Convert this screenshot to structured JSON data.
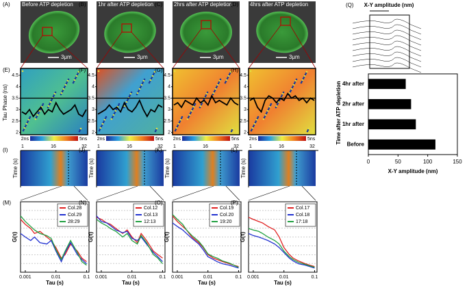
{
  "images": [
    {
      "label": "(A)",
      "caption": "Before ATP depletion",
      "scale": "3μm"
    },
    {
      "label": "(B)",
      "caption": "1hr after ATP depletion",
      "scale": "3μm"
    },
    {
      "label": "(C)",
      "caption": "2hrs after ATP depletion",
      "scale": "3μm"
    },
    {
      "label": "(D)",
      "caption": "4hrs after ATP depletion",
      "scale": "3μm"
    }
  ],
  "kymographs": [
    {
      "label": "(I)",
      "ticks": [
        "1",
        "16",
        "32"
      ],
      "ylabel": "Time (s)"
    },
    {
      "label": "(J)",
      "ticks": [
        "1",
        "16",
        "32"
      ],
      "ylabel": "Time (s)"
    },
    {
      "label": "(K)",
      "ticks": [
        "1",
        "16",
        "32"
      ],
      "ylabel": "Time (s)"
    },
    {
      "label": "(L)",
      "ticks": [
        "1",
        "16",
        "32"
      ],
      "ylabel": "Time (s)"
    }
  ],
  "chart_data": [
    {
      "type": "hbar",
      "panel_label": "(Q)",
      "schematic_label": "X-Y amplitude (nm)",
      "categories": [
        "4hr after",
        "2hr after",
        "1hr after",
        "Before"
      ],
      "values": [
        63,
        72,
        80,
        113
      ],
      "color": "#000000",
      "xlim": [
        0,
        150
      ],
      "xticks": [
        0,
        50,
        100,
        150
      ],
      "xlabel": "X-Y amplitude (nm)",
      "ylabel": "Time after ATP depletion"
    },
    {
      "type": "trace",
      "panel_label": "(E)",
      "ylabel": "Tau Phase (ns)",
      "ylim": [
        1.9,
        4.8
      ],
      "yticks": [
        2,
        2.5,
        3,
        3.5,
        4,
        4.5
      ],
      "reference": 3.5,
      "colorbar": [
        "2ns",
        "5ns"
      ],
      "values": [
        2.9,
        2.8,
        3.0,
        2.7,
        2.9,
        3.1,
        2.8,
        3.0,
        2.9,
        3.3,
        3.0,
        2.8,
        2.9,
        3.0,
        3.2,
        2.8,
        2.7,
        3.0
      ]
    },
    {
      "type": "trace",
      "panel_label": "(F)",
      "ylim": [
        1.9,
        4.8
      ],
      "yticks": [
        2,
        2.5,
        3,
        3.5,
        4,
        4.5
      ],
      "reference": 3.5,
      "colorbar": [
        "2ns",
        "5ns"
      ],
      "values": [
        2.8,
        2.9,
        3.0,
        3.2,
        3.0,
        3.1,
        2.9,
        3.3,
        3.0,
        2.9,
        3.1,
        3.4,
        3.0,
        2.7,
        3.0,
        2.9,
        3.2,
        3.1
      ]
    },
    {
      "type": "trace",
      "panel_label": "(G)",
      "ylim": [
        1.9,
        4.8
      ],
      "yticks": [
        2,
        2.5,
        3,
        3.5,
        4,
        4.5
      ],
      "reference": 3.5,
      "colorbar": [
        "2ns",
        "5ns"
      ],
      "values": [
        3.2,
        3.3,
        3.1,
        3.4,
        3.3,
        3.2,
        3.5,
        3.3,
        3.4,
        3.2,
        3.6,
        3.3,
        3.4,
        3.3,
        3.2,
        3.5,
        3.3,
        3.2
      ]
    },
    {
      "type": "trace",
      "panel_label": "(H)",
      "ylim": [
        1.9,
        4.8
      ],
      "yticks": [
        2,
        2.5,
        3,
        3.5,
        4,
        4.5
      ],
      "reference": 3.5,
      "colorbar": [
        "2ns",
        "5ns"
      ],
      "values": [
        3.4,
        3.5,
        3.1,
        2.9,
        3.4,
        3.6,
        3.5,
        3.3,
        3.5,
        3.4,
        3.7,
        3.5,
        3.6,
        3.4,
        3.5,
        3.3,
        3.5,
        3.4
      ]
    },
    {
      "type": "line",
      "panel_label": "(M)",
      "ylabel": "G(τ)",
      "xlabel": "Tau (s)",
      "log_x": true,
      "xlim": [
        0.0007,
        0.12
      ],
      "xticks": [
        0.001,
        0.01,
        0.1
      ],
      "ylim": [
        0,
        1
      ],
      "x": [
        0.0007,
        0.001,
        0.0015,
        0.002,
        0.003,
        0.005,
        0.007,
        0.01,
        0.015,
        0.02,
        0.03,
        0.05,
        0.07,
        0.1
      ],
      "series": [
        {
          "name": "Col.28",
          "color": "#e02020",
          "values": [
            0.75,
            0.68,
            0.62,
            0.55,
            0.58,
            0.5,
            0.45,
            0.35,
            0.2,
            0.25,
            0.4,
            0.3,
            0.2,
            0.15
          ]
        },
        {
          "name": "Col.29",
          "color": "#2030d0",
          "values": [
            0.55,
            0.5,
            0.45,
            0.5,
            0.42,
            0.4,
            0.45,
            0.3,
            0.15,
            0.28,
            0.42,
            0.25,
            0.18,
            0.12
          ]
        },
        {
          "name": "28:29",
          "color": "#20a040",
          "values": [
            0.8,
            0.72,
            0.65,
            0.6,
            0.55,
            0.52,
            0.48,
            0.32,
            0.18,
            0.3,
            0.45,
            0.28,
            0.15,
            0.1
          ]
        }
      ]
    },
    {
      "type": "line",
      "panel_label": "(N)",
      "ylabel": "G(τ)",
      "xlabel": "Tau (s)",
      "log_x": true,
      "xlim": [
        0.0007,
        0.12
      ],
      "xticks": [
        0.001,
        0.01,
        0.1
      ],
      "ylim": [
        0,
        1
      ],
      "x": [
        0.0007,
        0.001,
        0.0015,
        0.002,
        0.003,
        0.005,
        0.007,
        0.01,
        0.015,
        0.02,
        0.03,
        0.05,
        0.07,
        0.1
      ],
      "series": [
        {
          "name": "Col.12",
          "color": "#e02020",
          "values": [
            0.78,
            0.75,
            0.7,
            0.68,
            0.62,
            0.55,
            0.6,
            0.5,
            0.42,
            0.55,
            0.45,
            0.3,
            0.25,
            0.2
          ]
        },
        {
          "name": "Col.13",
          "color": "#2030d0",
          "values": [
            0.8,
            0.72,
            0.7,
            0.66,
            0.6,
            0.56,
            0.58,
            0.48,
            0.45,
            0.5,
            0.4,
            0.28,
            0.22,
            0.15
          ]
        },
        {
          "name": "12:13",
          "color": "#20a040",
          "values": [
            0.75,
            0.7,
            0.66,
            0.62,
            0.58,
            0.5,
            0.55,
            0.45,
            0.4,
            0.52,
            0.42,
            0.25,
            0.2,
            0.12
          ]
        }
      ]
    },
    {
      "type": "line",
      "panel_label": "(O)",
      "ylabel": "G(τ)",
      "xlabel": "Tau (s)",
      "log_x": true,
      "xlim": [
        0.0007,
        0.12
      ],
      "xticks": [
        0.001,
        0.01,
        0.1
      ],
      "ylim": [
        0,
        1
      ],
      "x": [
        0.0007,
        0.001,
        0.0015,
        0.002,
        0.003,
        0.005,
        0.007,
        0.01,
        0.015,
        0.02,
        0.03,
        0.05,
        0.07,
        0.1
      ],
      "series": [
        {
          "name": "Col.19",
          "color": "#e02020",
          "values": [
            0.8,
            0.72,
            0.65,
            0.6,
            0.5,
            0.42,
            0.35,
            0.25,
            0.2,
            0.18,
            0.15,
            0.12,
            0.1,
            0.08
          ]
        },
        {
          "name": "Col.20",
          "color": "#2030d0",
          "values": [
            0.7,
            0.65,
            0.6,
            0.55,
            0.48,
            0.4,
            0.32,
            0.22,
            0.18,
            0.15,
            0.12,
            0.1,
            0.08,
            0.06
          ]
        },
        {
          "name": "19:20",
          "color": "#20a040",
          "values": [
            0.82,
            0.75,
            0.68,
            0.6,
            0.52,
            0.44,
            0.36,
            0.26,
            0.22,
            0.2,
            0.16,
            0.13,
            0.1,
            0.07
          ]
        }
      ]
    },
    {
      "type": "line",
      "panel_label": "(P)",
      "ylabel": "G(τ)",
      "xlabel": "Tau (s)",
      "log_x": true,
      "xlim": [
        0.0007,
        0.12
      ],
      "xticks": [
        0.001,
        0.01,
        0.1
      ],
      "ylim": [
        0,
        1
      ],
      "x": [
        0.0007,
        0.001,
        0.0015,
        0.002,
        0.003,
        0.005,
        0.007,
        0.01,
        0.015,
        0.02,
        0.03,
        0.05,
        0.07,
        0.1
      ],
      "series": [
        {
          "name": "Col.17",
          "color": "#e02020",
          "values": [
            0.78,
            0.75,
            0.72,
            0.7,
            0.65,
            0.6,
            0.5,
            0.35,
            0.25,
            0.2,
            0.16,
            0.12,
            0.1,
            0.08
          ]
        },
        {
          "name": "Col.18",
          "color": "#2030d0",
          "values": [
            0.55,
            0.52,
            0.5,
            0.48,
            0.45,
            0.4,
            0.35,
            0.28,
            0.2,
            0.16,
            0.12,
            0.1,
            0.08,
            0.06
          ]
        },
        {
          "name": "17:18",
          "color": "#20a040",
          "values": [
            0.62,
            0.6,
            0.58,
            0.55,
            0.5,
            0.45,
            0.4,
            0.3,
            0.22,
            0.18,
            0.14,
            0.11,
            0.09,
            0.07
          ]
        }
      ]
    }
  ]
}
